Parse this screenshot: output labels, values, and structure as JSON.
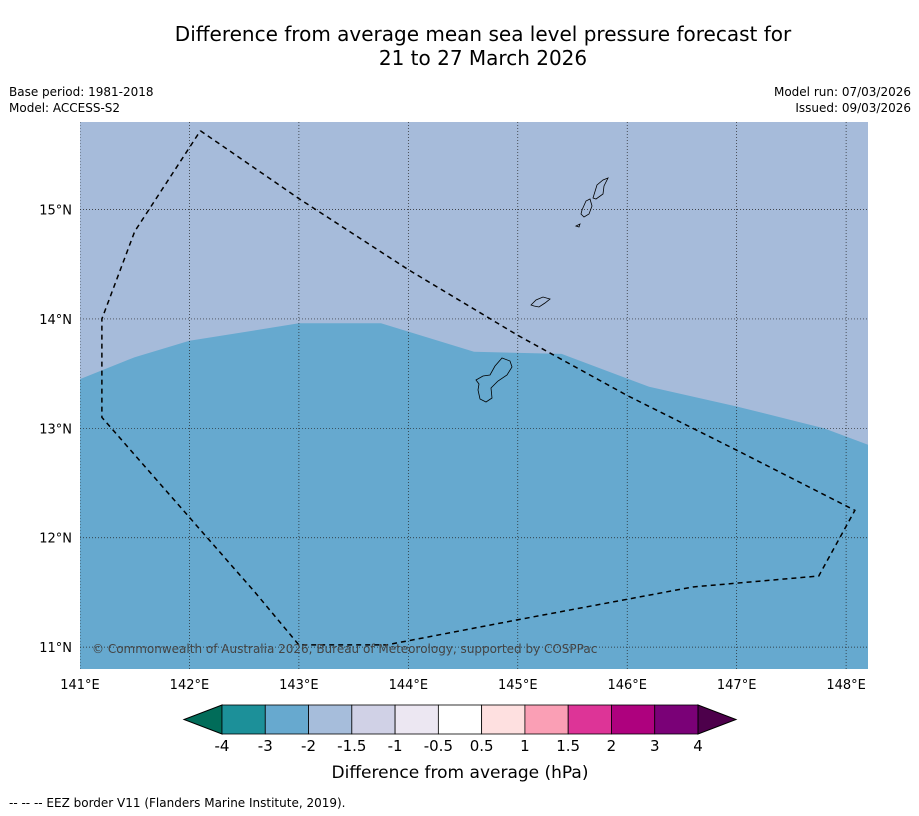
{
  "title_line1": "Difference from average mean sea level pressure forecast for",
  "title_line2": "21 to 27 March 2026",
  "base_period": "Base period: 1981-2018",
  "model": "Model: ACCESS-S2",
  "model_run": "Model run: 07/03/2026",
  "issued": "Issued: 09/03/2026",
  "copyright": "© Commonwealth of Australia 2026, Bureau of Meteorology, supported by COSPPac",
  "footnote": "--  --  -- EEZ border V11 (Flanders Marine Institute, 2019).",
  "map": {
    "lon_range": [
      141.0,
      148.2
    ],
    "lat_range": [
      10.8,
      15.8
    ],
    "lon_ticks": [
      141,
      142,
      143,
      144,
      145,
      146,
      147,
      148
    ],
    "lon_tick_labels": [
      "141°E",
      "142°E",
      "143°E",
      "144°E",
      "145°E",
      "146°E",
      "147°E",
      "148°E"
    ],
    "lat_ticks": [
      11,
      12,
      13,
      14,
      15
    ],
    "lat_tick_labels": [
      "11°N",
      "12°N",
      "13°N",
      "14°N",
      "15°N"
    ],
    "fill_colors": {
      "north": "#a6bbda",
      "south": "#66a9cf"
    },
    "band_boundary": [
      [
        141.0,
        13.45
      ],
      [
        141.5,
        13.65
      ],
      [
        142.0,
        13.8
      ],
      [
        143.0,
        13.96
      ],
      [
        143.75,
        13.96
      ],
      [
        144.6,
        13.7
      ],
      [
        145.4,
        13.68
      ],
      [
        146.2,
        13.38
      ],
      [
        147.0,
        13.2
      ],
      [
        147.8,
        13.0
      ],
      [
        148.2,
        12.85
      ]
    ],
    "eez_border": [
      [
        142.1,
        15.72
      ],
      [
        143.0,
        15.1
      ],
      [
        144.0,
        14.45
      ],
      [
        145.0,
        13.85
      ],
      [
        146.0,
        13.3
      ],
      [
        147.0,
        12.8
      ],
      [
        148.08,
        12.25
      ],
      [
        147.75,
        11.65
      ],
      [
        146.6,
        11.55
      ],
      [
        145.0,
        11.25
      ],
      [
        143.8,
        11.02
      ],
      [
        143.0,
        11.02
      ],
      [
        142.6,
        11.5
      ],
      [
        141.2,
        13.1
      ],
      [
        141.2,
        14.0
      ],
      [
        141.5,
        14.8
      ],
      [
        142.1,
        15.72
      ]
    ]
  },
  "colorbar": {
    "label": "Difference from average (hPa)",
    "tick_labels": [
      "-4",
      "-3",
      "-2",
      "-1.5",
      "-1",
      "-0.5",
      "0.5",
      "1",
      "1.5",
      "2",
      "3",
      "4"
    ],
    "low_extend_color": "#016c59",
    "high_extend_color": "#4d004b",
    "colors": [
      "#1c9099",
      "#67a9cf",
      "#a6bddb",
      "#d0d1e6",
      "#ece7f2",
      "#ffffff",
      "#fee0e0",
      "#fa9fb5",
      "#dd3497",
      "#ae017e",
      "#7a0177"
    ]
  }
}
